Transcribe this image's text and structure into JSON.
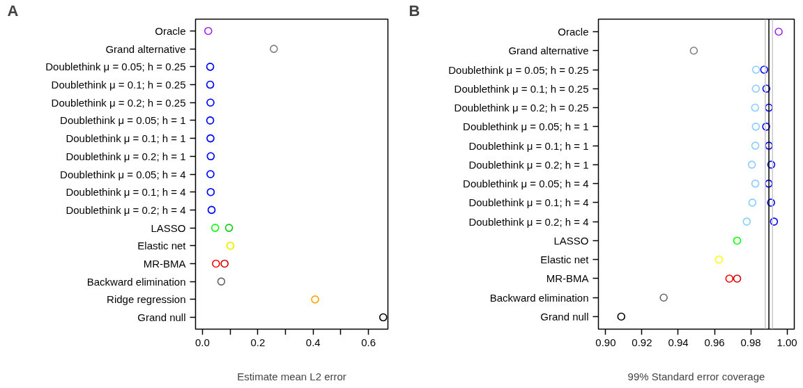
{
  "chart_data": [
    {
      "type": "scatter",
      "title": "A",
      "xlabel": "Estimate mean L2 error",
      "orientation": "horizontal",
      "marker": "circle",
      "grid": false,
      "categories": [
        "Oracle",
        "Grand alternative",
        "Doublethink μ = 0.05; h = 0.25",
        "Doublethink μ = 0.1; h = 0.25",
        "Doublethink μ = 0.2; h = 0.25",
        "Doublethink μ = 0.05; h = 1",
        "Doublethink μ = 0.1; h = 1",
        "Doublethink μ = 0.2; h = 1",
        "Doublethink μ = 0.05; h = 4",
        "Doublethink μ = 0.1; h = 4",
        "Doublethink μ = 0.2; h = 4",
        "LASSO",
        "Elastic net",
        "MR-BMA",
        "Backward elimination",
        "Ridge regression",
        "Grand null"
      ],
      "xlim": [
        -0.025,
        0.67
      ],
      "xticks": [
        {
          "value": 0,
          "label": "0.0"
        },
        {
          "value": 0.1,
          "label": null
        },
        {
          "value": 0.2,
          "label": "0.2"
        },
        {
          "value": 0.3,
          "label": null
        },
        {
          "value": 0.4,
          "label": "0.4"
        },
        {
          "value": 0.5,
          "label": null
        },
        {
          "value": 0.6,
          "label": "0.6"
        }
      ],
      "series": [
        {
          "values": [
            0.021,
            0.258,
            0.028,
            0.028,
            0.029,
            0.028,
            0.029,
            0.03,
            0.029,
            0.03,
            0.033,
            0.046,
            0.101,
            0.049,
            0.068,
            0.407,
            0.653
          ],
          "colors": [
            "#a020f0",
            "#7f7f7f",
            "#87cefa",
            "#87cefa",
            "#87cefa",
            "#87cefa",
            "#87cefa",
            "#87cefa",
            "#87cefa",
            "#87cefa",
            "#87cefa",
            "#00ff00",
            "#ffff00",
            "#ff0000",
            "#666666",
            "#ffa500",
            "#000000"
          ]
        },
        {
          "values": [
            null,
            null,
            0.028,
            0.028,
            0.029,
            0.028,
            0.029,
            0.03,
            0.029,
            0.03,
            0.033,
            0.096,
            0.101,
            0.08,
            null,
            null,
            null
          ],
          "colors": [
            "#0000ff",
            "#0000ff",
            "#0000ff",
            "#0000ff",
            "#0000ff",
            "#0000ff",
            "#0000ff",
            "#0000ff",
            "#0000ff",
            "#0000ff",
            "#0000ff",
            "#00cd00",
            "#eeee00",
            "#cd0000",
            "#0000ff",
            "#0000ff",
            "#0000ff"
          ]
        }
      ]
    },
    {
      "type": "scatter",
      "title": "B",
      "xlabel": "99% Standard error coverage",
      "orientation": "horizontal",
      "marker": "circle",
      "grid": false,
      "categories": [
        "Oracle",
        "Grand alternative",
        "Doublethink μ = 0.05; h = 0.25",
        "Doublethink μ = 0.1; h = 0.25",
        "Doublethink μ = 0.2; h = 0.25",
        "Doublethink μ = 0.05; h = 1",
        "Doublethink μ = 0.1; h = 1",
        "Doublethink μ = 0.2; h = 1",
        "Doublethink μ = 0.05; h = 4",
        "Doublethink μ = 0.1; h = 4",
        "Doublethink μ = 0.2; h = 4",
        "LASSO",
        "Elastic net",
        "MR-BMA",
        "Backward elimination",
        "Grand null"
      ],
      "xlim": [
        0.896,
        1.004
      ],
      "xticks": [
        {
          "value": 0.9,
          "label": "0.90"
        },
        {
          "value": 0.92,
          "label": "0.92"
        },
        {
          "value": 0.94,
          "label": "0.94"
        },
        {
          "value": 0.96,
          "label": "0.96"
        },
        {
          "value": 0.98,
          "label": "0.98"
        },
        {
          "value": 1.0,
          "label": "1.00"
        }
      ],
      "ref_lines": [
        {
          "axis": "x",
          "value": 0.988,
          "color": "#c8c8c8"
        },
        {
          "axis": "x",
          "value": 0.99,
          "color": "#000000"
        },
        {
          "axis": "x",
          "value": 0.992,
          "color": "#c8c8c8"
        }
      ],
      "series": [
        {
          "values": [
            0.9954,
            0.9486,
            0.9829,
            0.9828,
            0.9824,
            0.9828,
            0.9825,
            0.9806,
            0.9825,
            0.9809,
            0.9778,
            0.9725,
            0.9625,
            0.9682,
            0.932,
            0.9086
          ],
          "colors": [
            "#a020f0",
            "#7f7f7f",
            "#87cefa",
            "#87cefa",
            "#87cefa",
            "#87cefa",
            "#87cefa",
            "#87cefa",
            "#87cefa",
            "#87cefa",
            "#87cefa",
            "#00ff00",
            "#ffff00",
            "#ff0000",
            "#666666",
            "#000000"
          ]
        },
        {
          "values": [
            null,
            null,
            0.9874,
            0.9886,
            0.99,
            0.9885,
            0.99,
            0.9913,
            0.9899,
            0.9912,
            0.9928,
            null,
            null,
            0.9725,
            null,
            null
          ],
          "colors": [
            "#0000ff",
            "#0000ff",
            "#0000ff",
            "#0000ff",
            "#0000ff",
            "#0000ff",
            "#0000ff",
            "#0000ff",
            "#0000ff",
            "#0000ff",
            "#0000ff",
            "#0000ff",
            "#0000ff",
            "#cd0000",
            "#0000ff",
            "#0000ff"
          ]
        }
      ]
    }
  ]
}
